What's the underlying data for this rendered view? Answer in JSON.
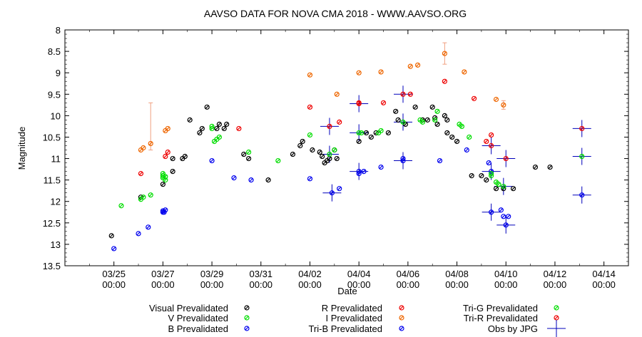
{
  "chart_data": {
    "type": "scatter",
    "title": "AAVSO DATA FOR NOVA CMA 2018 - WWW.AAVSO.ORG",
    "xlabel": "Date",
    "ylabel": "Magnitude",
    "xlim": [
      -1,
      22
    ],
    "ylim": [
      8,
      13.5
    ],
    "y_inverted": true,
    "grid": false,
    "legend_position": "bottom",
    "x_ticks": [
      {
        "x": 1,
        "line1": "03/25",
        "line2": "00:00"
      },
      {
        "x": 3,
        "line1": "03/27",
        "line2": "00:00"
      },
      {
        "x": 5,
        "line1": "03/29",
        "line2": "00:00"
      },
      {
        "x": 7,
        "line1": "03/31",
        "line2": "00:00"
      },
      {
        "x": 9,
        "line1": "04/02",
        "line2": "00:00"
      },
      {
        "x": 11,
        "line1": "04/04",
        "line2": "00:00"
      },
      {
        "x": 13,
        "line1": "04/06",
        "line2": "00:00"
      },
      {
        "x": 15,
        "line1": "04/08",
        "line2": "00:00"
      },
      {
        "x": 17,
        "line1": "04/10",
        "line2": "00:00"
      },
      {
        "x": 19,
        "line1": "04/12",
        "line2": "00:00"
      },
      {
        "x": 21,
        "line1": "04/14",
        "line2": "00:00"
      }
    ],
    "y_ticks": [
      "8",
      "8.5",
      "9",
      "9.5",
      "10",
      "10.5",
      "11",
      "11.5",
      "12",
      "12.5",
      "13",
      "13.5"
    ],
    "series": [
      {
        "name": "Visual Prevalidated",
        "marker": "circle",
        "color": "#000000",
        "points": [
          [
            0.9,
            12.8
          ],
          [
            2.1,
            11.9
          ],
          [
            3,
            11.6
          ],
          [
            3.4,
            11.3
          ],
          [
            3.4,
            11.0
          ],
          [
            3.8,
            11.0
          ],
          [
            3.9,
            10.95
          ],
          [
            4.1,
            10.1
          ],
          [
            4.5,
            10.4
          ],
          [
            4.6,
            10.3
          ],
          [
            4.8,
            9.8
          ],
          [
            5.2,
            10.3
          ],
          [
            5.3,
            10.2
          ],
          [
            5.5,
            10.3
          ],
          [
            5.6,
            10.2
          ],
          [
            6.3,
            10.9
          ],
          [
            6.5,
            11.0
          ],
          [
            7.3,
            11.5
          ],
          [
            8.3,
            10.9
          ],
          [
            8.6,
            10.7
          ],
          [
            8.7,
            10.6
          ],
          [
            9.1,
            10.8
          ],
          [
            9.4,
            10.85
          ],
          [
            9.5,
            10.95
          ],
          [
            9.6,
            11.1
          ],
          [
            9.7,
            11.05
          ],
          [
            9.8,
            11.0
          ],
          [
            10,
            10.8
          ],
          [
            10.1,
            11.0
          ],
          [
            11,
            10.6
          ],
          [
            11.3,
            10.4
          ],
          [
            11.5,
            10.5
          ],
          [
            11.7,
            10.4
          ],
          [
            12.2,
            10.4
          ],
          [
            12.5,
            9.9
          ],
          [
            12.6,
            10.1
          ],
          [
            12.9,
            10.2
          ],
          [
            13.3,
            9.8
          ],
          [
            13.6,
            10.1
          ],
          [
            13.8,
            10.1
          ],
          [
            14,
            9.8
          ],
          [
            14.1,
            10.05
          ],
          [
            14.2,
            10.2
          ],
          [
            14.5,
            10.0
          ],
          [
            14.6,
            10.1
          ],
          [
            14.6,
            10.4
          ],
          [
            14.8,
            10.5
          ],
          [
            15,
            10.6
          ],
          [
            15.6,
            11.4
          ],
          [
            16,
            11.4
          ],
          [
            16.2,
            11.5
          ],
          [
            16.6,
            11.7
          ],
          [
            16.9,
            11.7
          ],
          [
            17.3,
            11.7
          ],
          [
            18.2,
            11.2
          ],
          [
            18.8,
            11.2
          ]
        ]
      },
      {
        "name": "V Prevalidated",
        "marker": "circle",
        "color": "#00dd00",
        "points": [
          [
            1.3,
            12.1
          ],
          [
            2.1,
            11.95
          ],
          [
            2.2,
            11.9
          ],
          [
            2.5,
            11.85
          ],
          [
            3,
            11.35
          ],
          [
            3,
            11.4
          ],
          [
            3,
            11.45
          ],
          [
            3.1,
            11.5
          ],
          [
            3.1,
            11.42
          ],
          [
            5,
            10.3
          ],
          [
            5,
            10.25
          ],
          [
            5.1,
            10.6
          ],
          [
            5.2,
            10.55
          ],
          [
            5.3,
            10.5
          ],
          [
            6.5,
            10.85
          ],
          [
            7.7,
            11.05
          ],
          [
            9,
            10.45
          ],
          [
            10,
            10.8
          ],
          [
            11.1,
            10.4
          ],
          [
            11.8,
            10.4
          ],
          [
            11.9,
            10.35
          ],
          [
            13.5,
            10.1
          ],
          [
            13.6,
            10.15
          ],
          [
            14.1,
            10.1
          ],
          [
            14.2,
            9.9
          ],
          [
            15.1,
            10.2
          ],
          [
            15.2,
            10.25
          ],
          [
            15.5,
            10.5
          ],
          [
            16.4,
            11.4
          ],
          [
            16.6,
            11.55
          ],
          [
            16.7,
            11.6
          ]
        ]
      },
      {
        "name": "B Prevalidated",
        "marker": "circle",
        "color": "#0000ee",
        "points": [
          [
            1,
            13.1
          ],
          [
            2,
            12.75
          ],
          [
            2.4,
            12.6
          ],
          [
            3,
            12.25
          ],
          [
            3,
            12.22
          ],
          [
            3.05,
            12.25
          ],
          [
            3.1,
            12.2
          ],
          [
            5,
            11.05
          ],
          [
            5.9,
            11.45
          ],
          [
            6.6,
            11.5
          ],
          [
            9,
            11.47
          ],
          [
            10.2,
            11.7
          ],
          [
            11.2,
            11.3
          ],
          [
            11.9,
            11.2
          ],
          [
            14.3,
            11.05
          ],
          [
            15.4,
            10.8
          ],
          [
            16.3,
            11.1
          ],
          [
            16.8,
            12.2
          ],
          [
            16.9,
            12.35
          ],
          [
            17.1,
            12.35
          ]
        ]
      },
      {
        "name": "R Prevalidated",
        "marker": "circle",
        "color": "#ee0000",
        "points": [
          [
            2.1,
            11.35
          ],
          [
            3.1,
            10.95
          ],
          [
            3.2,
            10.85
          ],
          [
            6.1,
            10.3
          ],
          [
            9,
            9.8
          ],
          [
            10.2,
            10.15
          ],
          [
            11,
            9.7
          ],
          [
            12,
            9.7
          ],
          [
            13.1,
            9.5
          ],
          [
            14.5,
            9.2
          ],
          [
            15.7,
            9.6
          ],
          [
            16.2,
            10.6
          ],
          [
            16.4,
            10.45
          ]
        ]
      },
      {
        "name": "I Prevalidated",
        "marker": "circle",
        "color": "#ee6600",
        "points": [
          [
            2.1,
            10.8
          ],
          [
            2.2,
            10.75
          ],
          [
            2.5,
            10.65
          ],
          [
            3.1,
            10.35
          ],
          [
            3.2,
            10.3
          ],
          [
            9,
            9.05
          ],
          [
            10.1,
            9.5
          ],
          [
            11,
            9.0
          ],
          [
            11.9,
            8.98
          ],
          [
            13.1,
            8.85
          ],
          [
            13.4,
            8.82
          ],
          [
            14.5,
            8.55
          ],
          [
            15.3,
            8.98
          ],
          [
            16.6,
            9.62
          ],
          [
            16.9,
            9.75
          ]
        ],
        "error_bars": [
          {
            "x": 2.5,
            "low": 9.7,
            "high": 10.8
          },
          {
            "x": 14.5,
            "low": 8.3,
            "high": 8.8
          },
          {
            "x": 16.9,
            "low": 9.65,
            "high": 9.85
          }
        ]
      },
      {
        "name": "Tri-B Prevalidated",
        "marker": "circle",
        "color": "#0000ee",
        "points": [
          [
            9.9,
            11.8
          ],
          [
            11,
            11.3
          ],
          [
            11,
            11.35
          ],
          [
            12.8,
            11.05
          ],
          [
            12.8,
            11.0
          ],
          [
            16.4,
            12.25
          ],
          [
            16.4,
            11.3
          ],
          [
            17,
            12.55
          ],
          [
            20.1,
            11.85
          ]
        ]
      },
      {
        "name": "Tri-G Prevalidated",
        "marker": "circle",
        "color": "#00dd00",
        "points": [
          [
            9.8,
            10.9
          ],
          [
            11,
            10.4
          ],
          [
            12.8,
            10.15
          ],
          [
            16.4,
            11.35
          ],
          [
            16.9,
            11.65
          ],
          [
            20.1,
            10.95
          ]
        ]
      },
      {
        "name": "Tri-R Prevalidated",
        "marker": "circle",
        "color": "#ee0000",
        "points": [
          [
            9.8,
            10.25
          ],
          [
            11,
            9.72
          ],
          [
            12.8,
            9.5
          ],
          [
            16.4,
            10.7
          ],
          [
            17,
            11.0
          ],
          [
            20.1,
            10.3
          ]
        ]
      },
      {
        "name": "Obs by JPG",
        "marker": "cross",
        "color": "#0000bb",
        "points": [
          [
            9.8,
            10.25
          ],
          [
            9.8,
            10.9
          ],
          [
            9.9,
            11.8
          ],
          [
            11,
            9.72
          ],
          [
            11,
            10.4
          ],
          [
            11,
            11.3
          ],
          [
            12.8,
            9.5
          ],
          [
            12.8,
            10.15
          ],
          [
            12.8,
            11.05
          ],
          [
            16.4,
            10.7
          ],
          [
            16.4,
            11.3
          ],
          [
            16.4,
            12.25
          ],
          [
            17,
            11.0
          ],
          [
            16.9,
            11.65
          ],
          [
            17,
            12.55
          ],
          [
            20.1,
            10.3
          ],
          [
            20.1,
            10.95
          ],
          [
            20.1,
            11.85
          ]
        ]
      }
    ]
  },
  "legend": {
    "col1": [
      "Visual Prevalidated",
      "V Prevalidated",
      "B Prevalidated"
    ],
    "col2": [
      "R Prevalidated",
      "I Prevalidated",
      "Tri-B Prevalidated"
    ],
    "col3": [
      "Tri-G Prevalidated",
      "Tri-R Prevalidated",
      "Obs by JPG"
    ]
  }
}
